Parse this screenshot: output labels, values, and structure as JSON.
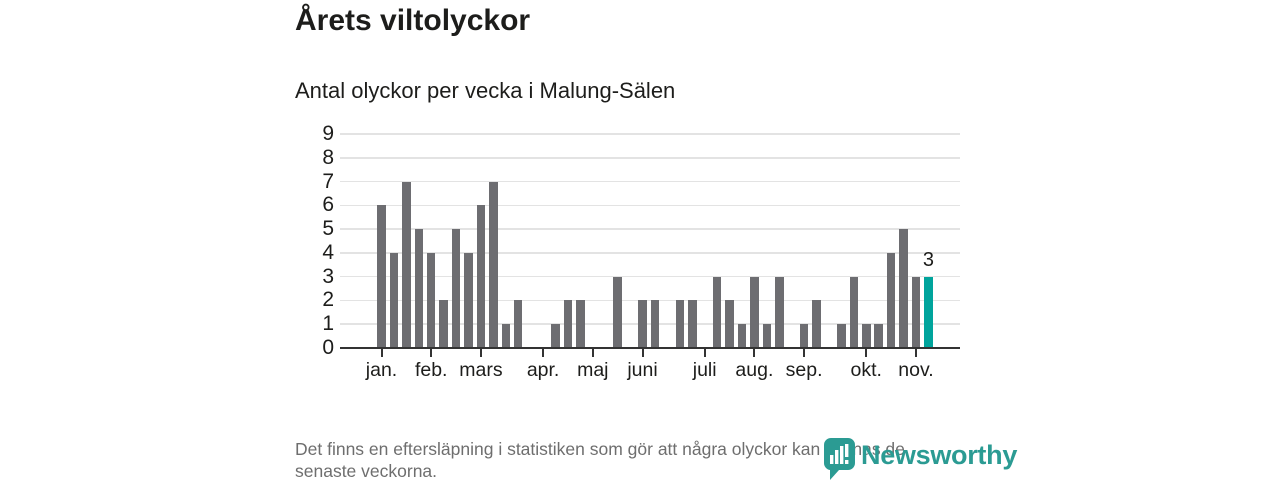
{
  "header": {
    "title": "Årets viltolyckor",
    "subtitle": "Antal olyckor per vecka i Malung-Sälen"
  },
  "chart_data": {
    "type": "bar",
    "title": "Årets viltolyckor",
    "subtitle": "Antal olyckor per vecka i Malung-Sälen",
    "x_unit": "vecka",
    "values": [
      6,
      4,
      7,
      5,
      4,
      2,
      5,
      4,
      6,
      7,
      1,
      2,
      0,
      0,
      1,
      2,
      2,
      0,
      0,
      3,
      0,
      2,
      2,
      0,
      2,
      2,
      0,
      3,
      2,
      1,
      3,
      1,
      3,
      0,
      1,
      2,
      0,
      1,
      3,
      1,
      1,
      4,
      5,
      3,
      3
    ],
    "x_ticks": [
      {
        "index": 0,
        "label": "jan."
      },
      {
        "index": 4,
        "label": "feb."
      },
      {
        "index": 8,
        "label": "mars"
      },
      {
        "index": 13,
        "label": "apr."
      },
      {
        "index": 17,
        "label": "maj"
      },
      {
        "index": 21,
        "label": "juni"
      },
      {
        "index": 26,
        "label": "juli"
      },
      {
        "index": 30,
        "label": "aug."
      },
      {
        "index": 34,
        "label": "sep."
      },
      {
        "index": 39,
        "label": "okt."
      },
      {
        "index": 43,
        "label": "nov."
      }
    ],
    "y_ticks": [
      "0",
      "1",
      "2",
      "3",
      "4",
      "5",
      "6",
      "7",
      "8",
      "9"
    ],
    "ylim": [
      0,
      9
    ],
    "grid": true,
    "legend": false,
    "bar_color": "#6d6d71",
    "highlight_color": "#00a49c",
    "highlight_index": 44,
    "highlight_label": "3"
  },
  "footer": {
    "note": "Det finns en eftersläpning i statistiken som gör att några olyckor kan saknas de\nsenaste veckorna.",
    "logo_text": "Newsworthy",
    "logo_color": "#2b9b93"
  }
}
